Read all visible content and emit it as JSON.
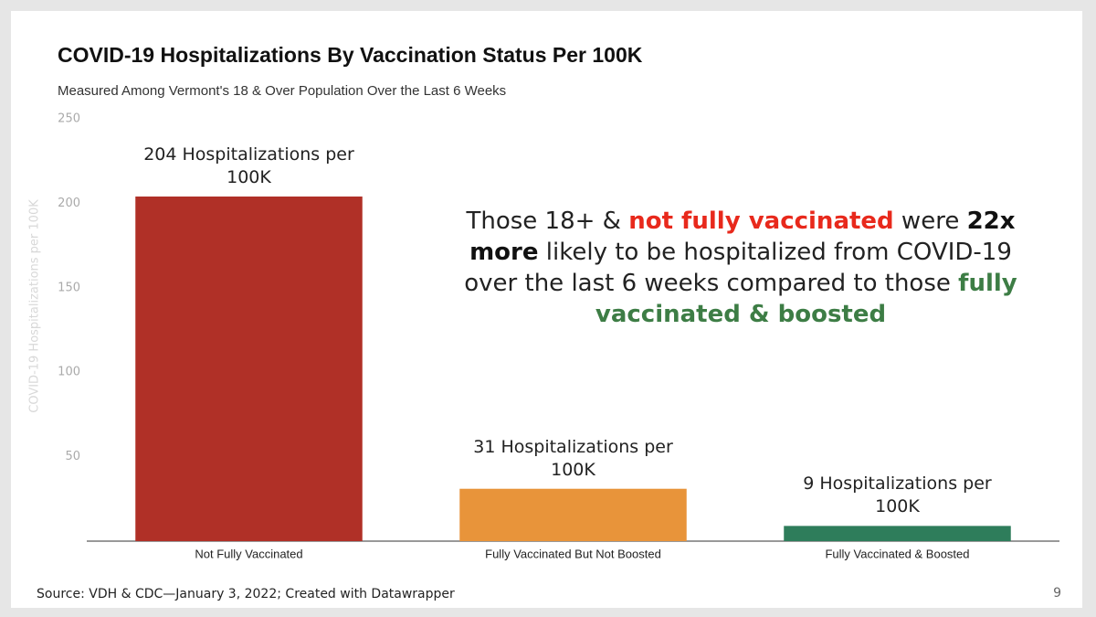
{
  "chart_data": {
    "type": "bar",
    "title": "COVID-19 Hospitalizations By Vaccination Status Per 100K",
    "subtitle": "Measured Among Vermont's 18 & Over Population Over the Last 6 Weeks",
    "y_label": "COVID-19 Hospitalizations per 100K",
    "categories": [
      "Not Fully Vaccinated",
      "Fully Vaccinated But Not Boosted",
      "Fully Vaccinated & Boosted"
    ],
    "values": [
      204,
      31,
      9
    ],
    "value_labels": [
      "204 Hospitalizations per 100K",
      "31 Hospitalizations per 100K",
      "9 Hospitalizations per 100K"
    ],
    "colors": [
      "#b03027",
      "#e8943a",
      "#2e7d5b"
    ],
    "ylim": [
      0,
      250
    ],
    "yticks": [
      50,
      100,
      150,
      200,
      250
    ],
    "grid": false,
    "annotation": [
      {
        "text": "Those 18+ & "
      },
      {
        "text": "not fully vaccinated",
        "color": "#e8291c",
        "bold": true
      },
      {
        "text": " were "
      },
      {
        "text": "22x more",
        "color": "#111111",
        "bold": true
      },
      {
        "text": " likely to be hospitalized from COVID-19 over the last 6 weeks compared to those "
      },
      {
        "text": "fully vaccinated & boosted",
        "color": "#3d7d45",
        "bold": true
      }
    ],
    "source": "Source: VDH & CDC—January 3, 2022; Created with Datawrapper"
  },
  "page_number": "9"
}
